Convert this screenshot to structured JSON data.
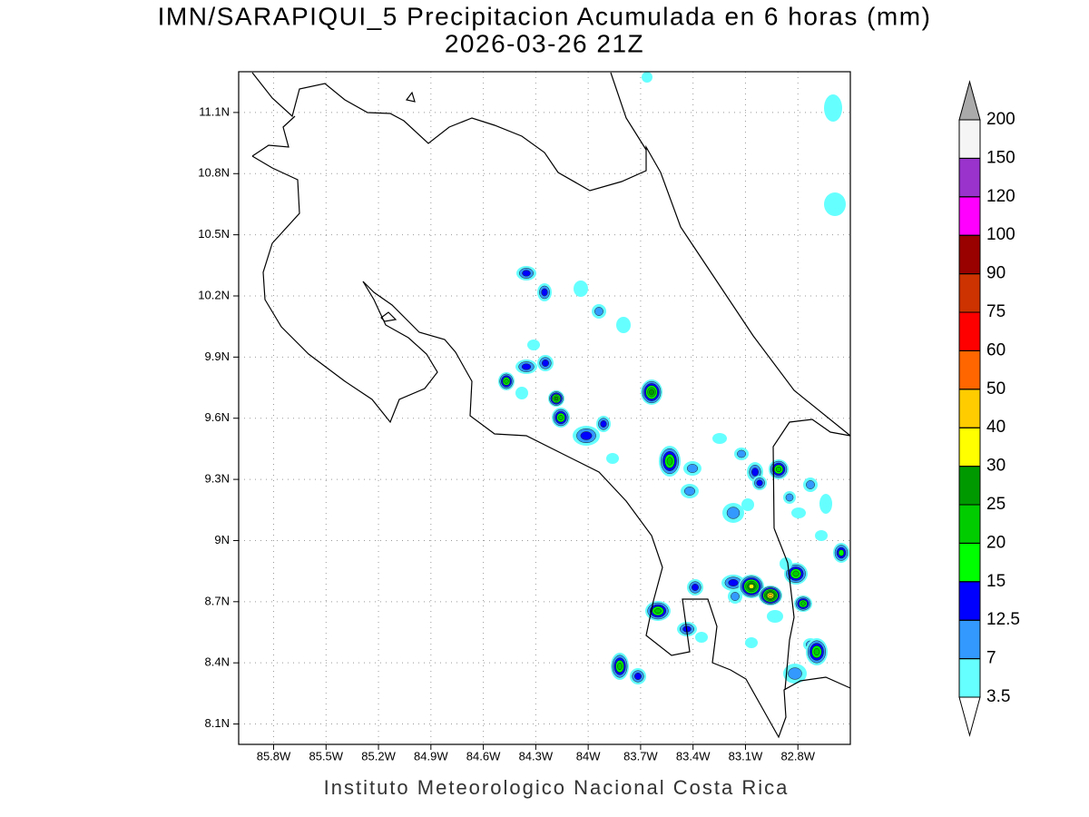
{
  "title": [
    "IMN/SARAPIQUI_5 Precipitacion Acumulada en 6 horas (mm)",
    "2026-03-26 21Z"
  ],
  "map": {
    "xlim": [
      -86.0,
      -82.5
    ],
    "ylim": [
      8.0,
      11.3
    ],
    "lon_ticks": [
      {
        "value": -85.8,
        "label": "85.8W"
      },
      {
        "value": -85.5,
        "label": "85.5W"
      },
      {
        "value": -85.2,
        "label": "85.2W"
      },
      {
        "value": -84.9,
        "label": "84.9W"
      },
      {
        "value": -84.6,
        "label": "84.6W"
      },
      {
        "value": -84.3,
        "label": "84.3W"
      },
      {
        "value": -84.0,
        "label": "84W"
      },
      {
        "value": -83.7,
        "label": "83.7W"
      },
      {
        "value": -83.4,
        "label": "83.4W"
      },
      {
        "value": -83.1,
        "label": "83.1W"
      },
      {
        "value": -82.8,
        "label": "82.8W"
      }
    ],
    "lat_ticks": [
      {
        "value": 8.1,
        "label": "8.1N"
      },
      {
        "value": 8.4,
        "label": "8.4N"
      },
      {
        "value": 8.7,
        "label": "8.7N"
      },
      {
        "value": 9.0,
        "label": "9N"
      },
      {
        "value": 9.3,
        "label": "9.3N"
      },
      {
        "value": 9.6,
        "label": "9.6N"
      },
      {
        "value": 9.9,
        "label": "9.9N"
      },
      {
        "value": 10.2,
        "label": "10.2N"
      },
      {
        "value": 10.5,
        "label": "10.5N"
      },
      {
        "value": 10.8,
        "label": "10.8N"
      },
      {
        "value": 11.1,
        "label": "11.1N"
      }
    ],
    "grid": true
  },
  "colorbar": {
    "levels": [
      3.5,
      7,
      12.5,
      15,
      20,
      25,
      30,
      40,
      50,
      60,
      75,
      90,
      100,
      120,
      150,
      200
    ],
    "colors": [
      "#ffffff",
      "#66ffff",
      "#3399ff",
      "#0000ff",
      "#00ff00",
      "#00cc00",
      "#009900",
      "#ffff00",
      "#ffcc00",
      "#ff6600",
      "#ff0000",
      "#cc3300",
      "#990000",
      "#ff00ff",
      "#9933cc",
      "#f5f5f5",
      "#aaaaaa"
    ]
  },
  "footer": "Instituto Meteorologico Nacional Costa Rica"
}
